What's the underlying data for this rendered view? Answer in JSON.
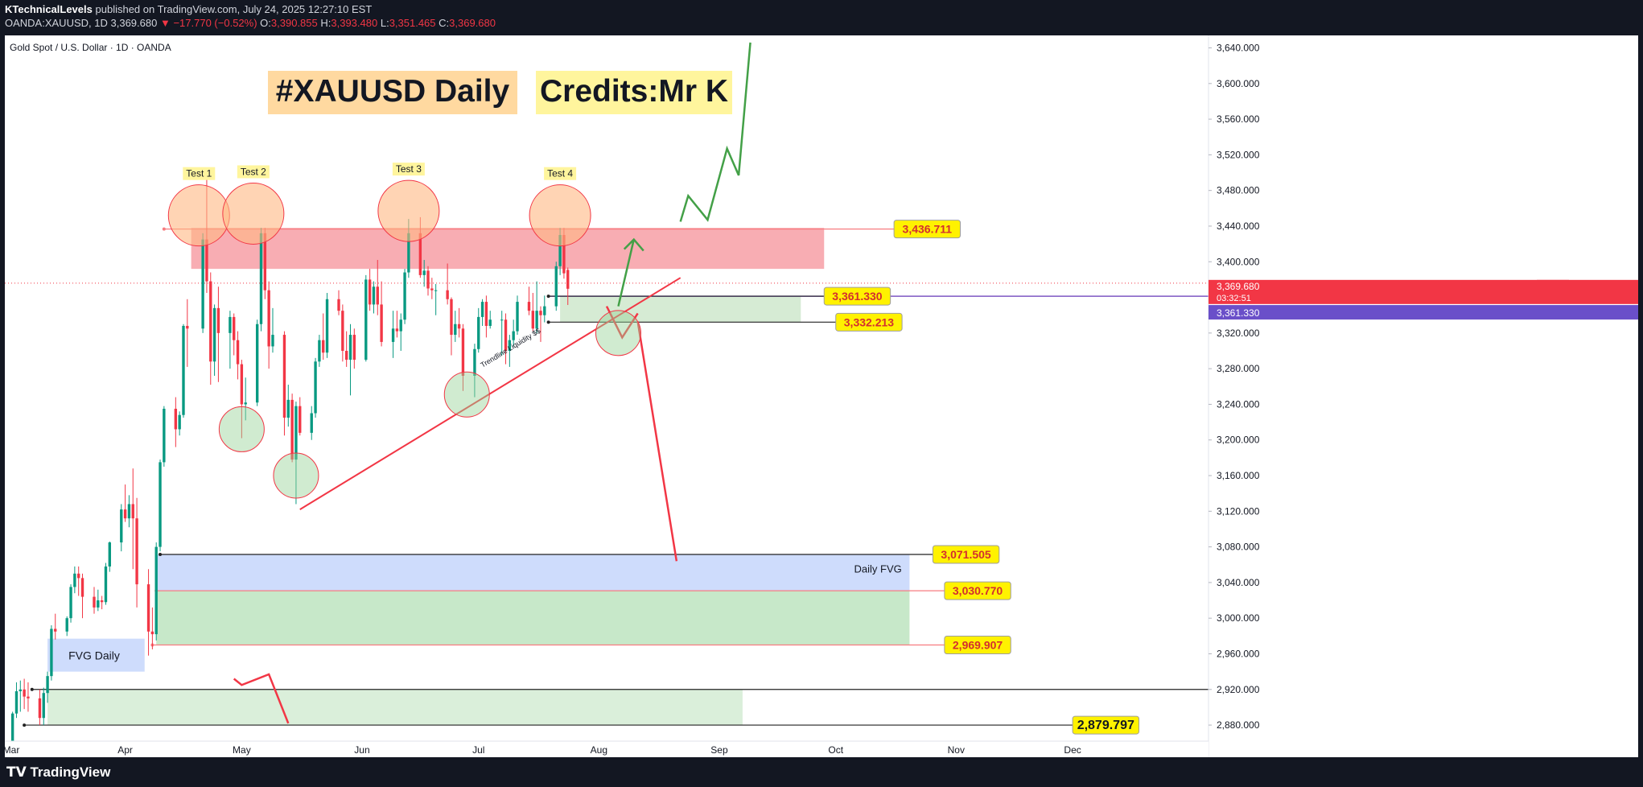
{
  "header": {
    "author": "KTechnicalLevels",
    "published_text": "published on TradingView.com, July 24, 2025 12:27:10 EST",
    "symbol_line": "OANDA:XAUUSD, 1D",
    "last": "3,369.680",
    "change": "−17.770 (−0.52%)",
    "o_label": "O:",
    "o": "3,390.855",
    "h_label": "H:",
    "h": "3,393.480",
    "l_label": "L:",
    "l": "3,351.465",
    "c_label": "C:",
    "c": "3,369.680"
  },
  "chart_title": "Gold Spot / U.S. Dollar · 1D · OANDA",
  "banners": {
    "left": "#XAUUSD Daily",
    "right": "Credits:Mr K"
  },
  "footer": {
    "brand": "TradingView"
  },
  "chart_data": {
    "type": "candlestick",
    "symbol": "XAUUSD",
    "ylim": [
      2862,
      3654
    ],
    "y_ticks": [
      2880,
      2920,
      2960,
      3000,
      3040,
      3080,
      3120,
      3160,
      3200,
      3240,
      3280,
      3320,
      3360,
      3400,
      3440,
      3480,
      3520,
      3560,
      3600,
      3640
    ],
    "y_tick_labels": [
      "2,880.000",
      "2,920.000",
      "2,960.000",
      "3,000.000",
      "3,040.000",
      "3,080.000",
      "3,120.000",
      "3,160.000",
      "3,200.000",
      "3,240.000",
      "3,280.000",
      "3,320.000",
      "3,360.000",
      "3,400.000",
      "3,440.000",
      "3,480.000",
      "3,520.000",
      "3,560.000",
      "3,600.000",
      "3,640.000"
    ],
    "x_start": "2025-03-01",
    "x_end": "2026-01-05",
    "x_ticks": [
      {
        "date": "2025-03-01",
        "label": "Mar"
      },
      {
        "date": "2025-04-01",
        "label": "Apr"
      },
      {
        "date": "2025-05-01",
        "label": "May"
      },
      {
        "date": "2025-06-01",
        "label": "Jun"
      },
      {
        "date": "2025-07-01",
        "label": "Jul"
      },
      {
        "date": "2025-08-01",
        "label": "Aug"
      },
      {
        "date": "2025-09-01",
        "label": "Sep"
      },
      {
        "date": "2025-10-01",
        "label": "Oct"
      },
      {
        "date": "2025-11-01",
        "label": "Nov"
      },
      {
        "date": "2025-12-01",
        "label": "Dec"
      }
    ],
    "price_tags": {
      "last": {
        "value": 3369.68,
        "label": "3,369.680",
        "countdown": "03:32:51",
        "name": "XAUUSD"
      },
      "line": {
        "value": 3361.33,
        "label": "3,361.330"
      }
    },
    "candles": [
      {
        "d": "2025-03-03",
        "o": 2858,
        "h": 2895,
        "l": 2855,
        "c": 2893
      },
      {
        "d": "2025-03-04",
        "o": 2893,
        "h": 2928,
        "l": 2888,
        "c": 2918
      },
      {
        "d": "2025-03-05",
        "o": 2918,
        "h": 2930,
        "l": 2895,
        "c": 2920
      },
      {
        "d": "2025-03-06",
        "o": 2920,
        "h": 2932,
        "l": 2898,
        "c": 2912
      },
      {
        "d": "2025-03-07",
        "o": 2912,
        "h": 2928,
        "l": 2895,
        "c": 2910
      },
      {
        "d": "2025-03-10",
        "o": 2910,
        "h": 2920,
        "l": 2880,
        "c": 2888
      },
      {
        "d": "2025-03-11",
        "o": 2888,
        "h": 2922,
        "l": 2880,
        "c": 2916
      },
      {
        "d": "2025-03-12",
        "o": 2916,
        "h": 2940,
        "l": 2905,
        "c": 2935
      },
      {
        "d": "2025-03-13",
        "o": 2935,
        "h": 2992,
        "l": 2930,
        "c": 2988
      },
      {
        "d": "2025-03-14",
        "o": 2988,
        "h": 3005,
        "l": 2976,
        "c": 2985
      },
      {
        "d": "2025-03-17",
        "o": 2985,
        "h": 3002,
        "l": 2980,
        "c": 3000
      },
      {
        "d": "2025-03-18",
        "o": 3000,
        "h": 3038,
        "l": 2995,
        "c": 3035
      },
      {
        "d": "2025-03-19",
        "o": 3035,
        "h": 3058,
        "l": 3028,
        "c": 3050
      },
      {
        "d": "2025-03-20",
        "o": 3050,
        "h": 3058,
        "l": 3025,
        "c": 3045
      },
      {
        "d": "2025-03-21",
        "o": 3045,
        "h": 3050,
        "l": 3000,
        "c": 3024
      },
      {
        "d": "2025-03-24",
        "o": 3024,
        "h": 3035,
        "l": 3005,
        "c": 3012
      },
      {
        "d": "2025-03-25",
        "o": 3012,
        "h": 3032,
        "l": 3008,
        "c": 3020
      },
      {
        "d": "2025-03-26",
        "o": 3020,
        "h": 3025,
        "l": 3010,
        "c": 3018
      },
      {
        "d": "2025-03-27",
        "o": 3018,
        "h": 3062,
        "l": 3015,
        "c": 3058
      },
      {
        "d": "2025-03-28",
        "o": 3058,
        "h": 3086,
        "l": 3052,
        "c": 3085
      },
      {
        "d": "2025-03-31",
        "o": 3085,
        "h": 3128,
        "l": 3075,
        "c": 3122
      },
      {
        "d": "2025-04-01",
        "o": 3122,
        "h": 3150,
        "l": 3108,
        "c": 3112
      },
      {
        "d": "2025-04-02",
        "o": 3112,
        "h": 3138,
        "l": 3102,
        "c": 3128
      },
      {
        "d": "2025-04-03",
        "o": 3128,
        "h": 3168,
        "l": 3055,
        "c": 3112
      },
      {
        "d": "2025-04-04",
        "o": 3112,
        "h": 3135,
        "l": 3012,
        "c": 3038
      },
      {
        "d": "2025-04-07",
        "o": 3038,
        "h": 3055,
        "l": 2958,
        "c": 2985
      },
      {
        "d": "2025-04-08",
        "o": 2985,
        "h": 3012,
        "l": 2965,
        "c": 2982
      },
      {
        "d": "2025-04-09",
        "o": 2982,
        "h": 3085,
        "l": 2975,
        "c": 3080
      },
      {
        "d": "2025-04-10",
        "o": 3080,
        "h": 3178,
        "l": 3075,
        "c": 3175
      },
      {
        "d": "2025-04-11",
        "o": 3175,
        "h": 3238,
        "l": 3170,
        "c": 3235
      },
      {
        "d": "2025-04-14",
        "o": 3235,
        "h": 3248,
        "l": 3192,
        "c": 3212
      },
      {
        "d": "2025-04-15",
        "o": 3212,
        "h": 3232,
        "l": 3205,
        "c": 3228
      },
      {
        "d": "2025-04-16",
        "o": 3228,
        "h": 3330,
        "l": 3225,
        "c": 3328
      },
      {
        "d": "2025-04-17",
        "o": 3328,
        "h": 3358,
        "l": 3282,
        "c": 3325
      },
      {
        "d": "2025-04-21",
        "o": 3325,
        "h": 3432,
        "l": 3320,
        "c": 3425
      },
      {
        "d": "2025-04-22",
        "o": 3425,
        "h": 3500,
        "l": 3365,
        "c": 3378
      },
      {
        "d": "2025-04-23",
        "o": 3378,
        "h": 3388,
        "l": 3262,
        "c": 3288
      },
      {
        "d": "2025-04-24",
        "o": 3288,
        "h": 3352,
        "l": 3272,
        "c": 3348
      },
      {
        "d": "2025-04-25",
        "o": 3348,
        "h": 3372,
        "l": 3265,
        "c": 3320
      },
      {
        "d": "2025-04-28",
        "o": 3320,
        "h": 3345,
        "l": 3280,
        "c": 3338
      },
      {
        "d": "2025-04-29",
        "o": 3338,
        "h": 3342,
        "l": 3295,
        "c": 3312
      },
      {
        "d": "2025-04-30",
        "o": 3312,
        "h": 3322,
        "l": 3268,
        "c": 3285
      },
      {
        "d": "2025-05-01",
        "o": 3285,
        "h": 3290,
        "l": 3202,
        "c": 3240
      },
      {
        "d": "2025-05-02",
        "o": 3240,
        "h": 3270,
        "l": 3222,
        "c": 3242
      },
      {
        "d": "2025-05-05",
        "o": 3242,
        "h": 3335,
        "l": 3238,
        "c": 3330
      },
      {
        "d": "2025-05-06",
        "o": 3330,
        "h": 3438,
        "l": 3322,
        "c": 3432
      },
      {
        "d": "2025-05-07",
        "o": 3432,
        "h": 3438,
        "l": 3358,
        "c": 3368
      },
      {
        "d": "2025-05-08",
        "o": 3368,
        "h": 3378,
        "l": 3280,
        "c": 3305
      },
      {
        "d": "2025-05-09",
        "o": 3305,
        "h": 3348,
        "l": 3298,
        "c": 3318
      },
      {
        "d": "2025-05-12",
        "o": 3318,
        "h": 3322,
        "l": 3205,
        "c": 3225
      },
      {
        "d": "2025-05-13",
        "o": 3225,
        "h": 3262,
        "l": 3215,
        "c": 3245
      },
      {
        "d": "2025-05-14",
        "o": 3245,
        "h": 3252,
        "l": 3175,
        "c": 3178
      },
      {
        "d": "2025-05-15",
        "o": 3178,
        "h": 3243,
        "l": 3128,
        "c": 3238
      },
      {
        "d": "2025-05-16",
        "o": 3238,
        "h": 3248,
        "l": 3205,
        "c": 3208
      },
      {
        "d": "2025-05-19",
        "o": 3208,
        "h": 3238,
        "l": 3200,
        "c": 3230
      },
      {
        "d": "2025-05-20",
        "o": 3230,
        "h": 3292,
        "l": 3225,
        "c": 3288
      },
      {
        "d": "2025-05-21",
        "o": 3288,
        "h": 3318,
        "l": 3282,
        "c": 3312
      },
      {
        "d": "2025-05-22",
        "o": 3312,
        "h": 3342,
        "l": 3290,
        "c": 3298
      },
      {
        "d": "2025-05-23",
        "o": 3298,
        "h": 3365,
        "l": 3292,
        "c": 3358
      },
      {
        "d": "2025-05-26",
        "o": 3358,
        "h": 3368,
        "l": 3340,
        "c": 3345
      },
      {
        "d": "2025-05-27",
        "o": 3345,
        "h": 3352,
        "l": 3288,
        "c": 3300
      },
      {
        "d": "2025-05-28",
        "o": 3300,
        "h": 3322,
        "l": 3282,
        "c": 3290
      },
      {
        "d": "2025-05-29",
        "o": 3290,
        "h": 3330,
        "l": 3250,
        "c": 3318
      },
      {
        "d": "2025-05-30",
        "o": 3318,
        "h": 3325,
        "l": 3280,
        "c": 3290
      },
      {
        "d": "2025-06-02",
        "o": 3290,
        "h": 3385,
        "l": 3288,
        "c": 3380
      },
      {
        "d": "2025-06-03",
        "o": 3380,
        "h": 3392,
        "l": 3345,
        "c": 3352
      },
      {
        "d": "2025-06-04",
        "o": 3352,
        "h": 3378,
        "l": 3342,
        "c": 3372
      },
      {
        "d": "2025-06-05",
        "o": 3372,
        "h": 3402,
        "l": 3340,
        "c": 3352
      },
      {
        "d": "2025-06-06",
        "o": 3352,
        "h": 3378,
        "l": 3305,
        "c": 3310
      },
      {
        "d": "2025-06-09",
        "o": 3310,
        "h": 3345,
        "l": 3292,
        "c": 3325
      },
      {
        "d": "2025-06-10",
        "o": 3325,
        "h": 3345,
        "l": 3315,
        "c": 3322
      },
      {
        "d": "2025-06-11",
        "o": 3322,
        "h": 3342,
        "l": 3300,
        "c": 3335
      },
      {
        "d": "2025-06-12",
        "o": 3335,
        "h": 3392,
        "l": 3330,
        "c": 3388
      },
      {
        "d": "2025-06-13",
        "o": 3388,
        "h": 3448,
        "l": 3382,
        "c": 3432
      },
      {
        "d": "2025-06-16",
        "o": 3432,
        "h": 3450,
        "l": 3382,
        "c": 3385
      },
      {
        "d": "2025-06-17",
        "o": 3385,
        "h": 3402,
        "l": 3372,
        "c": 3390
      },
      {
        "d": "2025-06-18",
        "o": 3390,
        "h": 3395,
        "l": 3362,
        "c": 3370
      },
      {
        "d": "2025-06-19",
        "o": 3370,
        "h": 3382,
        "l": 3358,
        "c": 3368
      },
      {
        "d": "2025-06-20",
        "o": 3368,
        "h": 3375,
        "l": 3340,
        "c": 3368
      },
      {
        "d": "2025-06-23",
        "o": 3368,
        "h": 3398,
        "l": 3352,
        "c": 3358
      },
      {
        "d": "2025-06-24",
        "o": 3358,
        "h": 3360,
        "l": 3295,
        "c": 3318
      },
      {
        "d": "2025-06-25",
        "o": 3318,
        "h": 3345,
        "l": 3310,
        "c": 3330
      },
      {
        "d": "2025-06-26",
        "o": 3330,
        "h": 3348,
        "l": 3315,
        "c": 3325
      },
      {
        "d": "2025-06-27",
        "o": 3325,
        "h": 3330,
        "l": 3255,
        "c": 3272
      },
      {
        "d": "2025-06-30",
        "o": 3272,
        "h": 3308,
        "l": 3248,
        "c": 3302
      },
      {
        "d": "2025-07-01",
        "o": 3302,
        "h": 3348,
        "l": 3298,
        "c": 3338
      },
      {
        "d": "2025-07-02",
        "o": 3338,
        "h": 3358,
        "l": 3328,
        "c": 3355
      },
      {
        "d": "2025-07-03",
        "o": 3355,
        "h": 3362,
        "l": 3315,
        "c": 3328
      },
      {
        "d": "2025-07-04",
        "o": 3328,
        "h": 3345,
        "l": 3325,
        "c": 3335
      },
      {
        "d": "2025-07-07",
        "o": 3335,
        "h": 3345,
        "l": 3295,
        "c": 3335
      },
      {
        "d": "2025-07-08",
        "o": 3335,
        "h": 3342,
        "l": 3285,
        "c": 3300
      },
      {
        "d": "2025-07-09",
        "o": 3300,
        "h": 3318,
        "l": 3282,
        "c": 3312
      },
      {
        "d": "2025-07-10",
        "o": 3312,
        "h": 3335,
        "l": 3305,
        "c": 3322
      },
      {
        "d": "2025-07-11",
        "o": 3322,
        "h": 3362,
        "l": 3318,
        "c": 3355
      },
      {
        "d": "2025-07-14",
        "o": 3355,
        "h": 3372,
        "l": 3340,
        "c": 3345
      },
      {
        "d": "2025-07-15",
        "o": 3345,
        "h": 3365,
        "l": 3322,
        "c": 3325
      },
      {
        "d": "2025-07-16",
        "o": 3325,
        "h": 3378,
        "l": 3320,
        "c": 3345
      },
      {
        "d": "2025-07-17",
        "o": 3345,
        "h": 3350,
        "l": 3310,
        "c": 3340
      },
      {
        "d": "2025-07-18",
        "o": 3340,
        "h": 3362,
        "l": 3332,
        "c": 3350
      },
      {
        "d": "2025-07-21",
        "o": 3350,
        "h": 3400,
        "l": 3345,
        "c": 3395
      },
      {
        "d": "2025-07-22",
        "o": 3395,
        "h": 3438,
        "l": 3385,
        "c": 3430
      },
      {
        "d": "2025-07-23",
        "o": 3430,
        "h": 3438,
        "l": 3381,
        "c": 3387
      },
      {
        "d": "2025-07-24",
        "o": 3390.855,
        "h": 3393.48,
        "l": 3351.465,
        "c": 3369.68
      }
    ],
    "zones": [
      {
        "kind": "supply",
        "x1": "2025-04-18",
        "x2": "2025-09-28",
        "y1": 3392,
        "y2": 3438,
        "color": "#f7a4ab"
      },
      {
        "kind": "fvg-green",
        "x1": "2025-07-22",
        "x2": "2025-09-22",
        "y1": 3332.213,
        "y2": 3361.33,
        "color": "#cfe8cc"
      },
      {
        "kind": "fvg-blue",
        "x1": "2025-04-09",
        "x2": "2025-10-20",
        "y1": 3030.77,
        "y2": 3071.505,
        "color": "#c5d6fb"
      },
      {
        "kind": "fvg-green",
        "x1": "2025-04-09",
        "x2": "2025-10-20",
        "y1": 2969.907,
        "y2": 3030.77,
        "color": "#bde4bf"
      },
      {
        "kind": "fvg-daily-blue",
        "x1": "2025-03-12",
        "x2": "2025-04-06",
        "y1": 2940,
        "y2": 2977,
        "color": "#c5d6fb"
      },
      {
        "kind": "lower-green",
        "x1": "2025-03-12",
        "x2": "2025-09-07",
        "y1": 2880,
        "y2": 2920,
        "color": "#d4ecd3"
      }
    ],
    "levels": [
      {
        "value": 3436.711,
        "label": "3,436.711",
        "x1": "2025-04-11",
        "label_at": "2025-10-16",
        "color": "#f77c80"
      },
      {
        "value": 3361.33,
        "label": "3,361.330",
        "x1": "2025-07-19",
        "label_at": "2025-09-28",
        "color": "#222222"
      },
      {
        "value": 3332.213,
        "label": "3,332.213",
        "x1": "2025-07-19",
        "label_at": "2025-10-01",
        "color": "#222222"
      },
      {
        "value": 3071.505,
        "label": "3,071.505",
        "x1": "2025-04-10",
        "label_at": "2025-10-26",
        "color": "#222222"
      },
      {
        "value": 3030.77,
        "label": "3,030.770",
        "x1": "2025-04-09",
        "label_at": "2025-10-29",
        "color": "#f77c80"
      },
      {
        "value": 2969.907,
        "label": "2,969.907",
        "x1": "2025-04-08",
        "label_at": "2025-10-29",
        "color": "#f77c80"
      },
      {
        "value": 2920,
        "label": "",
        "x1": "2025-03-08",
        "label_at": "",
        "color": "#222222"
      },
      {
        "value": 2880,
        "label": "2,879.797",
        "x1": "2025-03-06",
        "label_at": "2025-12-01",
        "color": "#222222"
      }
    ],
    "circles": [
      {
        "kind": "top",
        "label": "Test 1",
        "d": "2025-04-20",
        "v": 3452
      },
      {
        "kind": "top",
        "label": "Test 2",
        "d": "2025-05-04",
        "v": 3454
      },
      {
        "kind": "top",
        "label": "Test 3",
        "d": "2025-06-13",
        "v": 3457
      },
      {
        "kind": "top",
        "label": "Test 4",
        "d": "2025-07-22",
        "v": 3452
      },
      {
        "kind": "bottom",
        "label": "",
        "d": "2025-05-01",
        "v": 3212
      },
      {
        "kind": "bottom",
        "label": "",
        "d": "2025-05-15",
        "v": 3160
      },
      {
        "kind": "bottom",
        "label": "",
        "d": "2025-06-28",
        "v": 3251
      },
      {
        "kind": "bottom",
        "label": "",
        "d": "2025-08-06",
        "v": 3320
      }
    ],
    "trendline": {
      "label": "Trendline Liquidity $$",
      "from": {
        "d": "2025-05-16",
        "v": 3122
      },
      "to": {
        "d": "2025-08-22",
        "v": 3382
      }
    },
    "dashed_line": {
      "value": 3376
    },
    "bullish_path": [
      [
        "2025-08-22",
        3445
      ],
      [
        "2025-08-24",
        3474
      ],
      [
        "2025-08-29",
        3447
      ],
      [
        "2025-09-03",
        3527
      ],
      [
        "2025-09-06",
        3497
      ],
      [
        "2025-09-09",
        3646
      ]
    ],
    "bullish_arrow": [
      [
        "2025-08-06",
        3350
      ],
      [
        "2025-08-10",
        3425
      ]
    ],
    "v_pattern": [
      [
        "2025-08-03",
        3350
      ],
      [
        "2025-08-07",
        3315
      ],
      [
        "2025-08-11",
        3342
      ]
    ],
    "bearish_arrow": [
      [
        "2025-08-11",
        3333
      ],
      [
        "2025-08-21",
        3064
      ]
    ],
    "red_segment": [
      [
        "2025-04-29",
        2932
      ],
      [
        "2025-05-01",
        2925
      ],
      [
        "2025-05-08",
        2937
      ],
      [
        "2025-05-13",
        2882
      ]
    ],
    "annotations": {
      "daily_fvg": "Daily FVG",
      "fvg_daily": "FVG Daily"
    }
  }
}
